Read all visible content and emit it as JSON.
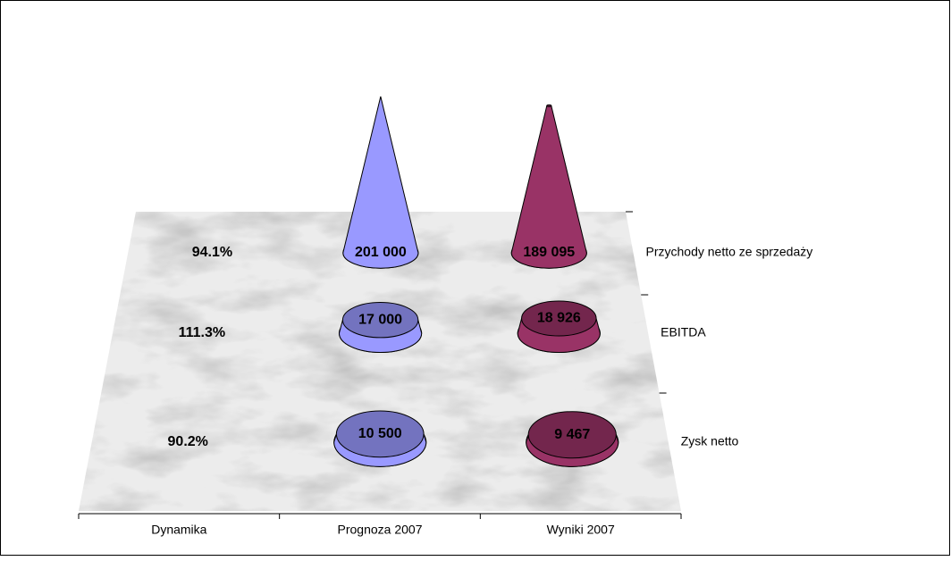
{
  "chart_data": {
    "type": "cone",
    "categories": [
      "Przychody netto ze sprzedaży",
      "EBITDA",
      "Zysk netto"
    ],
    "series": [
      {
        "name": "Dynamika",
        "values": [
          94.1,
          111.3,
          90.2
        ],
        "value_labels": [
          "94.1%",
          "111.3%",
          "90.2%"
        ]
      },
      {
        "name": "Prognoza  2007",
        "color": "#9999ff",
        "values": [
          201000,
          17000,
          10500
        ],
        "value_labels": [
          "201 000",
          "17 000",
          "10 500"
        ]
      },
      {
        "name": "Wyniki 2007",
        "color": "#993366",
        "values": [
          189095,
          18926,
          9467
        ],
        "value_labels": [
          "189 095",
          "18 926",
          "9 467"
        ]
      }
    ]
  }
}
